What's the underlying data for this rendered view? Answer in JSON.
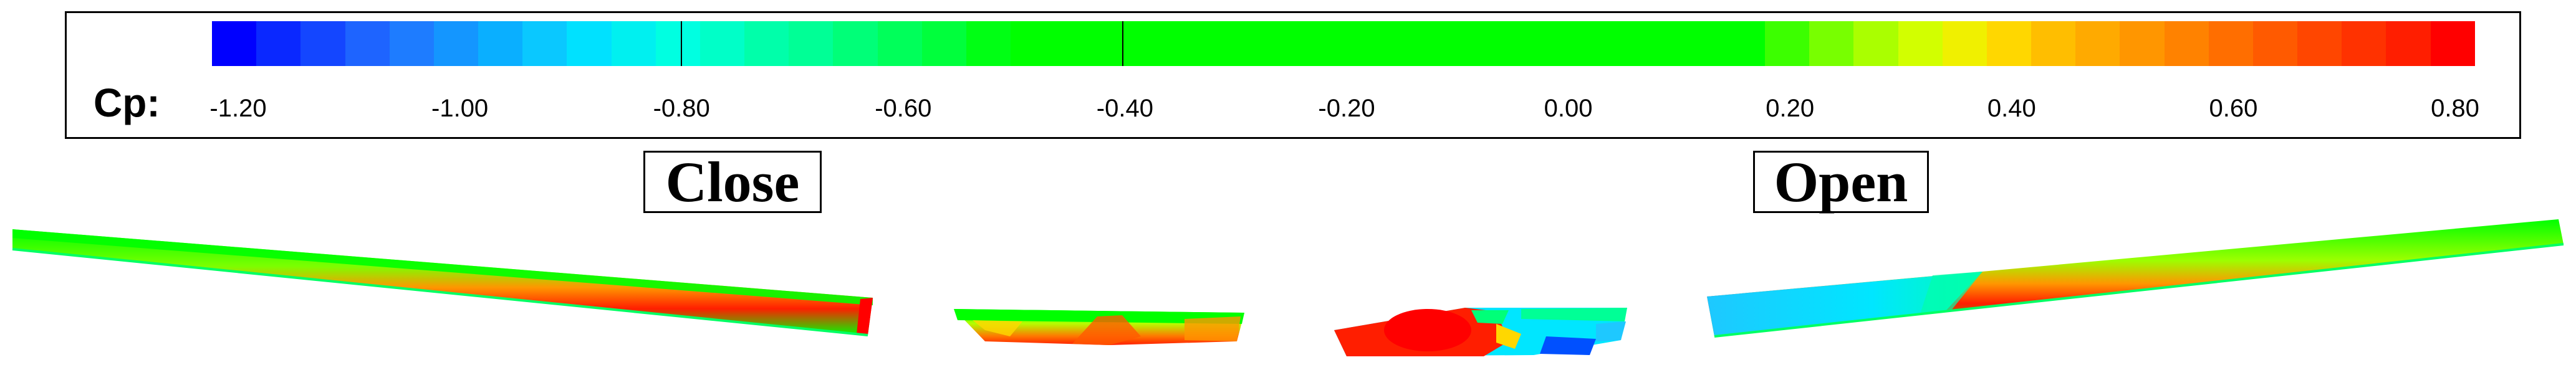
{
  "colorbar": {
    "variable_label": "Cp:",
    "tick_labels": [
      "-1.20",
      "-1.00",
      "-0.80",
      "-0.60",
      "-0.40",
      "-0.20",
      "0.00",
      "0.20",
      "0.40",
      "0.60",
      "0.80"
    ],
    "colors": [
      "#0000ff",
      "#0a28ff",
      "#1446ff",
      "#1e64ff",
      "#1e7cff",
      "#1496ff",
      "#0aafff",
      "#0ac8ff",
      "#00e1ff",
      "#00f0f0",
      "#00ffe1",
      "#00ffc8",
      "#00ffaa",
      "#00ff96",
      "#00ff78",
      "#00ff5a",
      "#00ff3c",
      "#00ff14",
      "#00ff00",
      "#00ff00",
      "#00ff00",
      "#00ff00",
      "#00ff00",
      "#00ff00",
      "#00ff00",
      "#00ff00",
      "#00ff00",
      "#00ff00",
      "#00ff00",
      "#00ff00",
      "#00ff00",
      "#00ff00",
      "#00ff00",
      "#00ff00",
      "#00ff00",
      "#3cff00",
      "#78ff00",
      "#aaff00",
      "#d2ff00",
      "#f0f000",
      "#ffd700",
      "#ffbe00",
      "#ffaa00",
      "#ff9600",
      "#ff8200",
      "#ff6e00",
      "#ff5a00",
      "#ff4600",
      "#ff3200",
      "#ff1e00",
      "#ff0000"
    ]
  },
  "labels": {
    "close": "Close",
    "open": "Open"
  }
}
